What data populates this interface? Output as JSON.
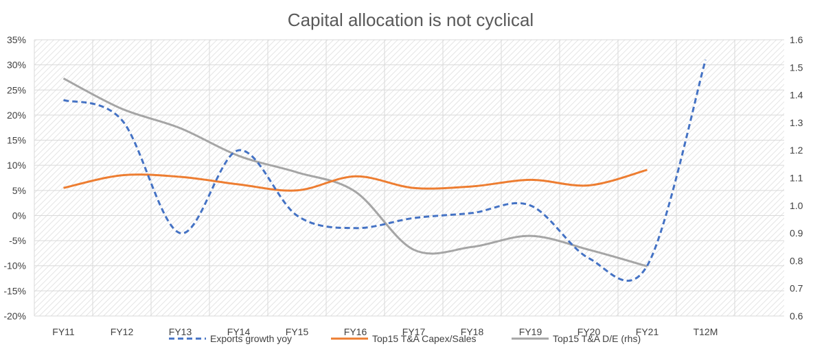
{
  "chart_data": {
    "type": "line",
    "title": "Capital allocation is not cyclical",
    "categories": [
      "FY11",
      "FY12",
      "FY13",
      "FY14",
      "FY15",
      "FY16",
      "FY17",
      "FY18",
      "FY19",
      "FY20",
      "FY21",
      "T12M"
    ],
    "y_left": {
      "min": -0.2,
      "max": 0.35,
      "step": 0.05,
      "ticks": [
        "35%",
        "30%",
        "25%",
        "20%",
        "15%",
        "10%",
        "5%",
        "0%",
        "-5%",
        "-10%",
        "-15%",
        "-20%"
      ]
    },
    "y_right": {
      "min": 0.6,
      "max": 1.6,
      "step": 0.1,
      "ticks": [
        "1.6",
        "1.5",
        "1.4",
        "1.3",
        "1.2",
        "1.1",
        "1.0",
        "0.9",
        "0.8",
        "0.7",
        "0.6"
      ]
    },
    "grid": true,
    "legend_position": "bottom",
    "series": [
      {
        "name": "Exports growth yoy",
        "axis": "left",
        "style": "dashed",
        "color": "#4472C4",
        "values": [
          0.23,
          0.19,
          -0.035,
          0.13,
          0.0,
          -0.025,
          -0.005,
          0.005,
          0.02,
          -0.085,
          -0.1,
          0.31
        ]
      },
      {
        "name": "Top15 T&A Capex/Sales",
        "axis": "left",
        "style": "solid",
        "color": "#ED7D31",
        "values": [
          0.055,
          0.08,
          0.077,
          0.062,
          0.05,
          0.078,
          0.055,
          0.058,
          0.071,
          0.06,
          0.091,
          null
        ]
      },
      {
        "name": "Top15 T&A D/E (rhs)",
        "axis": "right",
        "style": "solid",
        "color": "#A5A5A5",
        "values": [
          1.46,
          1.35,
          1.28,
          1.18,
          1.12,
          1.05,
          0.84,
          0.85,
          0.89,
          0.84,
          0.78,
          null
        ]
      }
    ]
  }
}
